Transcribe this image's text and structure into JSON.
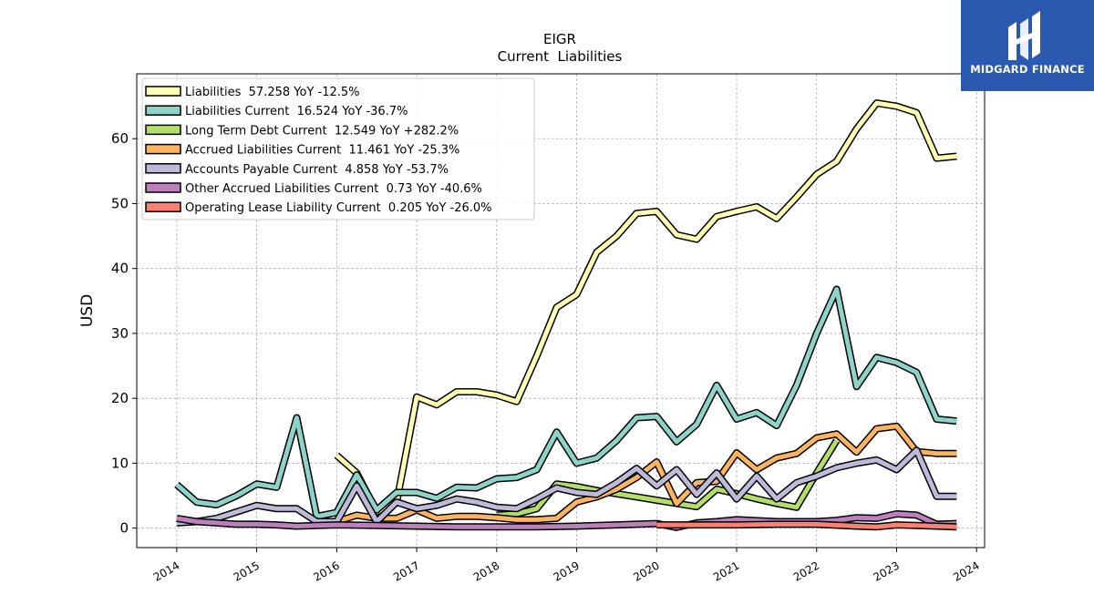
{
  "brand": {
    "name": "MIDGARD FINANCE",
    "bg_color": "#2b59b0"
  },
  "chart_data": {
    "type": "line",
    "title": "EIGR",
    "subtitle": "Current  Liabilities",
    "ylabel": "USD",
    "xlabel": "",
    "ylim": [
      -3,
      70
    ],
    "xlim": [
      2013.5,
      2024.1
    ],
    "yticks": [
      0,
      10,
      20,
      30,
      40,
      50,
      60
    ],
    "xticks": [
      "2014",
      "2015",
      "2016",
      "2017",
      "2018",
      "2019",
      "2020",
      "2021",
      "2022",
      "2023",
      "2024"
    ],
    "grid": true,
    "legend_position": "top-left",
    "series": [
      {
        "name": "Liabilities  57.258 YoY -12.5%",
        "color": "#ffffb3",
        "points": [
          [
            2016.0,
            11.2
          ],
          [
            2016.25,
            8.5
          ],
          [
            2016.5,
            2.5
          ],
          [
            2016.75,
            4.0
          ],
          [
            2017.0,
            20.2
          ],
          [
            2017.25,
            19.0
          ],
          [
            2017.5,
            21.0
          ],
          [
            2017.75,
            21.0
          ],
          [
            2018.0,
            20.5
          ],
          [
            2018.25,
            19.5
          ],
          [
            2018.5,
            26.5
          ],
          [
            2018.75,
            34.0
          ],
          [
            2019.0,
            36.0
          ],
          [
            2019.25,
            42.5
          ],
          [
            2019.5,
            45.0
          ],
          [
            2019.75,
            48.5
          ],
          [
            2020.0,
            48.8
          ],
          [
            2020.25,
            45.2
          ],
          [
            2020.5,
            44.5
          ],
          [
            2020.75,
            48.0
          ],
          [
            2021.0,
            48.8
          ],
          [
            2021.25,
            49.5
          ],
          [
            2021.5,
            47.7
          ],
          [
            2021.75,
            51.0
          ],
          [
            2022.0,
            54.5
          ],
          [
            2022.25,
            56.5
          ],
          [
            2022.5,
            61.5
          ],
          [
            2022.75,
            65.5
          ],
          [
            2023.0,
            65.0
          ],
          [
            2023.25,
            64.0
          ],
          [
            2023.5,
            57.0
          ],
          [
            2023.75,
            57.3
          ]
        ]
      },
      {
        "name": "Liabilities Current  16.524 YoY -36.7%",
        "color": "#8dd3c7",
        "points": [
          [
            2014.0,
            6.7
          ],
          [
            2014.25,
            4.0
          ],
          [
            2014.5,
            3.6
          ],
          [
            2014.75,
            5.0
          ],
          [
            2015.0,
            6.8
          ],
          [
            2015.25,
            6.3
          ],
          [
            2015.5,
            17.0
          ],
          [
            2015.75,
            1.8
          ],
          [
            2016.0,
            2.4
          ],
          [
            2016.25,
            8.2
          ],
          [
            2016.5,
            2.8
          ],
          [
            2016.75,
            5.5
          ],
          [
            2017.0,
            5.5
          ],
          [
            2017.25,
            4.6
          ],
          [
            2017.5,
            6.3
          ],
          [
            2017.75,
            6.2
          ],
          [
            2018.0,
            7.6
          ],
          [
            2018.25,
            7.8
          ],
          [
            2018.5,
            9.0
          ],
          [
            2018.75,
            14.8
          ],
          [
            2019.0,
            10.0
          ],
          [
            2019.25,
            10.8
          ],
          [
            2019.5,
            13.5
          ],
          [
            2019.75,
            17.0
          ],
          [
            2020.0,
            17.2
          ],
          [
            2020.25,
            13.3
          ],
          [
            2020.5,
            16.0
          ],
          [
            2020.75,
            22.0
          ],
          [
            2021.0,
            16.8
          ],
          [
            2021.25,
            17.8
          ],
          [
            2021.5,
            15.8
          ],
          [
            2021.75,
            22.0
          ],
          [
            2022.0,
            30.0
          ],
          [
            2022.25,
            36.8
          ],
          [
            2022.5,
            21.8
          ],
          [
            2022.75,
            26.3
          ],
          [
            2023.0,
            25.5
          ],
          [
            2023.25,
            24.0
          ],
          [
            2023.5,
            16.8
          ],
          [
            2023.75,
            16.5
          ]
        ]
      },
      {
        "name": "Long Term Debt Current  12.549 YoY +282.2%",
        "color": "#b3de69",
        "points": [
          [
            2018.0,
            2.0
          ],
          [
            2018.25,
            2.2
          ],
          [
            2018.5,
            3.0
          ],
          [
            2018.75,
            6.8
          ],
          [
            2019.0,
            6.4
          ],
          [
            2019.25,
            5.8
          ],
          [
            2019.5,
            5.3
          ],
          [
            2019.75,
            4.8
          ],
          [
            2020.0,
            4.3
          ],
          [
            2020.25,
            3.8
          ],
          [
            2020.5,
            3.3
          ],
          [
            2020.75,
            6.0
          ],
          [
            2021.0,
            5.3
          ],
          [
            2021.25,
            4.5
          ],
          [
            2021.5,
            3.8
          ],
          [
            2021.75,
            3.2
          ],
          [
            2022.0,
            8.5
          ],
          [
            2022.25,
            13.5
          ]
        ]
      },
      {
        "name": "Accrued Liabilities Current  11.461 YoY -25.3%",
        "color": "#fdb462",
        "points": [
          [
            2016.0,
            1.0
          ],
          [
            2016.25,
            2.0
          ],
          [
            2016.5,
            1.5
          ],
          [
            2016.75,
            1.5
          ],
          [
            2017.0,
            2.8
          ],
          [
            2017.25,
            1.5
          ],
          [
            2017.5,
            1.8
          ],
          [
            2017.75,
            1.8
          ],
          [
            2018.0,
            1.6
          ],
          [
            2018.25,
            1.3
          ],
          [
            2018.5,
            1.3
          ],
          [
            2018.75,
            1.5
          ],
          [
            2019.0,
            4.0
          ],
          [
            2019.25,
            4.8
          ],
          [
            2019.5,
            6.0
          ],
          [
            2019.75,
            7.8
          ],
          [
            2020.0,
            10.2
          ],
          [
            2020.25,
            3.8
          ],
          [
            2020.5,
            7.0
          ],
          [
            2020.75,
            7.2
          ],
          [
            2021.0,
            11.6
          ],
          [
            2021.25,
            9.0
          ],
          [
            2021.5,
            10.8
          ],
          [
            2021.75,
            11.5
          ],
          [
            2022.0,
            13.9
          ],
          [
            2022.25,
            14.5
          ],
          [
            2022.5,
            11.7
          ],
          [
            2022.75,
            15.3
          ],
          [
            2023.0,
            15.7
          ],
          [
            2023.25,
            11.8
          ],
          [
            2023.5,
            11.5
          ],
          [
            2023.75,
            11.5
          ]
        ]
      },
      {
        "name": "Accounts Payable Current  4.858 YoY -53.7%",
        "color": "#bebada",
        "points": [
          [
            2014.0,
            0.8
          ],
          [
            2014.25,
            1.0
          ],
          [
            2014.5,
            1.5
          ],
          [
            2014.75,
            2.5
          ],
          [
            2015.0,
            3.5
          ],
          [
            2015.25,
            3.0
          ],
          [
            2015.5,
            3.0
          ],
          [
            2015.75,
            1.0
          ],
          [
            2016.0,
            1.0
          ],
          [
            2016.25,
            6.5
          ],
          [
            2016.5,
            1.0
          ],
          [
            2016.75,
            4.0
          ],
          [
            2017.0,
            3.0
          ],
          [
            2017.25,
            3.5
          ],
          [
            2017.5,
            4.5
          ],
          [
            2017.75,
            4.0
          ],
          [
            2018.0,
            3.2
          ],
          [
            2018.25,
            3.0
          ],
          [
            2018.5,
            4.5
          ],
          [
            2018.75,
            6.2
          ],
          [
            2019.0,
            5.5
          ],
          [
            2019.25,
            5.2
          ],
          [
            2019.5,
            7.0
          ],
          [
            2019.75,
            9.2
          ],
          [
            2020.0,
            6.5
          ],
          [
            2020.25,
            9.0
          ],
          [
            2020.5,
            5.2
          ],
          [
            2020.75,
            8.5
          ],
          [
            2021.0,
            4.5
          ],
          [
            2021.25,
            8.0
          ],
          [
            2021.5,
            4.5
          ],
          [
            2021.75,
            7.0
          ],
          [
            2022.0,
            8.0
          ],
          [
            2022.25,
            9.3
          ],
          [
            2022.5,
            10.0
          ],
          [
            2022.75,
            10.5
          ],
          [
            2023.0,
            9.0
          ],
          [
            2023.25,
            12.0
          ],
          [
            2023.5,
            4.9
          ],
          [
            2023.75,
            4.9
          ]
        ]
      },
      {
        "name": "Other Accrued Liabilities Current  0.73 YoY -40.6%",
        "color": "#bc80bd",
        "points": [
          [
            2014.0,
            1.5
          ],
          [
            2014.25,
            1.0
          ],
          [
            2014.5,
            0.8
          ],
          [
            2014.75,
            0.6
          ],
          [
            2015.0,
            0.6
          ],
          [
            2015.25,
            0.5
          ],
          [
            2015.5,
            0.3
          ],
          [
            2015.75,
            0.4
          ],
          [
            2016.0,
            0.5
          ],
          [
            2016.5,
            0.4
          ],
          [
            2017.0,
            0.3
          ],
          [
            2017.5,
            0.2
          ],
          [
            2018.0,
            0.2
          ],
          [
            2018.5,
            0.2
          ],
          [
            2019.0,
            0.3
          ],
          [
            2019.5,
            0.5
          ],
          [
            2020.0,
            0.7
          ],
          [
            2020.25,
            0.1
          ],
          [
            2020.5,
            0.8
          ],
          [
            2020.75,
            1.0
          ],
          [
            2021.0,
            1.3
          ],
          [
            2021.5,
            1.0
          ],
          [
            2022.0,
            1.0
          ],
          [
            2022.25,
            1.2
          ],
          [
            2022.5,
            1.6
          ],
          [
            2022.75,
            1.5
          ],
          [
            2023.0,
            2.2
          ],
          [
            2023.25,
            2.0
          ],
          [
            2023.5,
            0.6
          ],
          [
            2023.75,
            0.7
          ]
        ]
      },
      {
        "name": "Operating Lease Liability Current  0.205 YoY -26.0%",
        "color": "#fb8072",
        "points": [
          [
            2020.0,
            0.5
          ],
          [
            2020.5,
            0.5
          ],
          [
            2021.0,
            0.5
          ],
          [
            2021.5,
            0.6
          ],
          [
            2022.0,
            0.6
          ],
          [
            2022.5,
            0.3
          ],
          [
            2022.75,
            0.2
          ],
          [
            2023.0,
            0.5
          ],
          [
            2023.25,
            0.4
          ],
          [
            2023.5,
            0.3
          ],
          [
            2023.75,
            0.2
          ]
        ]
      }
    ]
  }
}
